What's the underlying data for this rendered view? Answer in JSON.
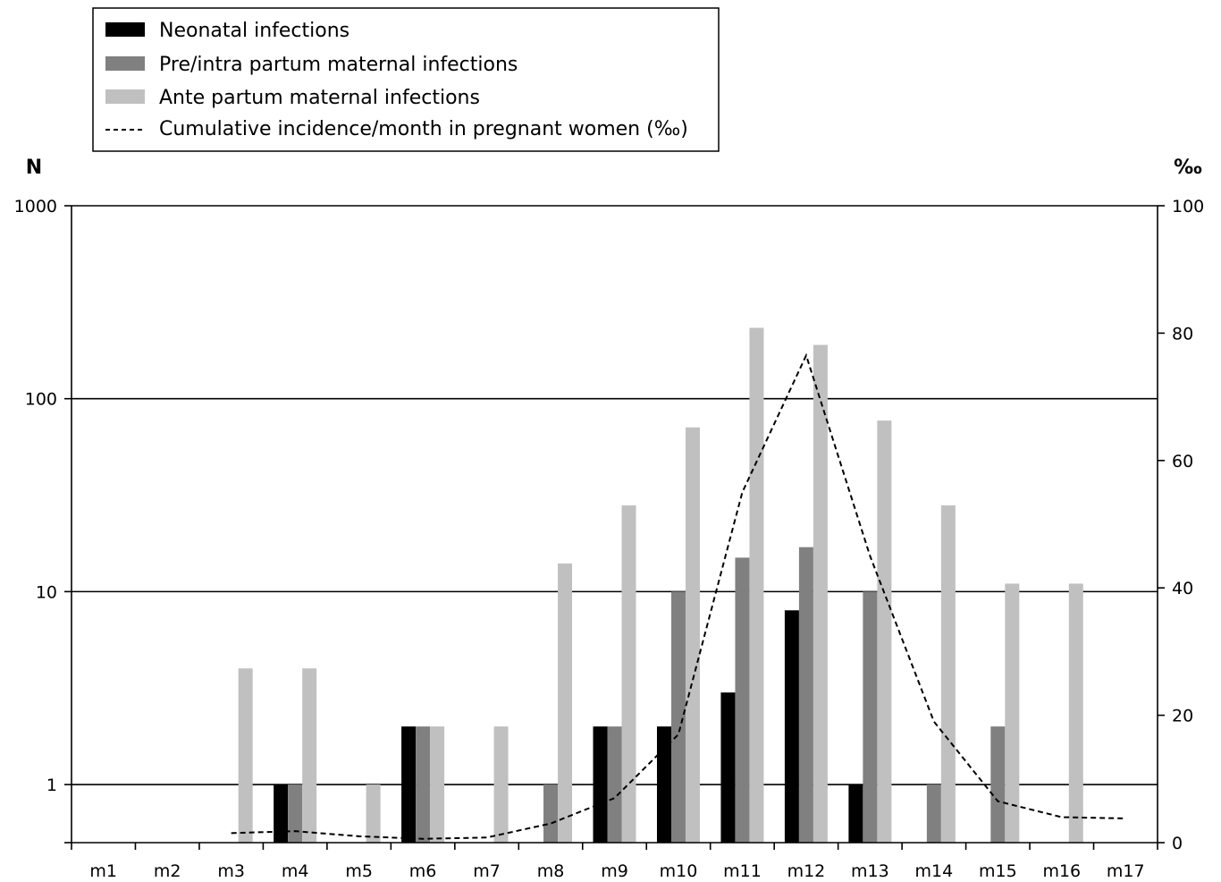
{
  "chart_data": {
    "type": "bar",
    "categories": [
      "m1",
      "m2",
      "m3",
      "m4",
      "m5",
      "m6",
      "m7",
      "m8",
      "m9",
      "m10",
      "m11",
      "m12",
      "m13",
      "m14",
      "m15",
      "m16",
      "m17"
    ],
    "series": [
      {
        "name": "Neonatal infections",
        "color": "#000000",
        "values": [
          null,
          null,
          null,
          1,
          null,
          2,
          null,
          null,
          2,
          2,
          3,
          8,
          1,
          null,
          null,
          null,
          null
        ]
      },
      {
        "name": "Pre/intra partum maternal infections",
        "color": "#808080",
        "values": [
          null,
          null,
          null,
          1,
          null,
          2,
          null,
          1,
          2,
          10,
          15,
          17,
          10,
          1,
          2,
          null,
          null
        ]
      },
      {
        "name": "Ante partum maternal infections",
        "color": "#c0c0c0",
        "values": [
          null,
          null,
          4,
          4,
          1,
          2,
          2,
          14,
          28,
          71,
          233,
          190,
          77,
          28,
          11,
          11,
          null
        ]
      }
    ],
    "line_series": {
      "name": "Cumulative incidence/month in pregnant women (‰)",
      "style": "dashed",
      "axis": "right",
      "values": [
        null,
        null,
        1.5,
        1.8,
        1.0,
        0.6,
        0.8,
        3.0,
        7.0,
        17.0,
        55.0,
        76.5,
        45.0,
        19.0,
        6.5,
        4.0,
        3.8
      ]
    },
    "y_left": {
      "label": "N",
      "scale": "log",
      "ylim": [
        0.5,
        1000
      ],
      "ticks": [
        1,
        10,
        100,
        1000
      ],
      "tick_labels": [
        "1",
        "10",
        "100",
        "1000"
      ]
    },
    "y_right": {
      "label": "‰",
      "scale": "linear",
      "ylim": [
        0,
        100
      ],
      "ticks": [
        0,
        20,
        40,
        60,
        80,
        100
      ],
      "tick_labels": [
        "0",
        "20",
        "40",
        "60",
        "80",
        "100"
      ]
    },
    "grid": "horizontal major (left axis decades)",
    "legend_position": "top-left"
  }
}
